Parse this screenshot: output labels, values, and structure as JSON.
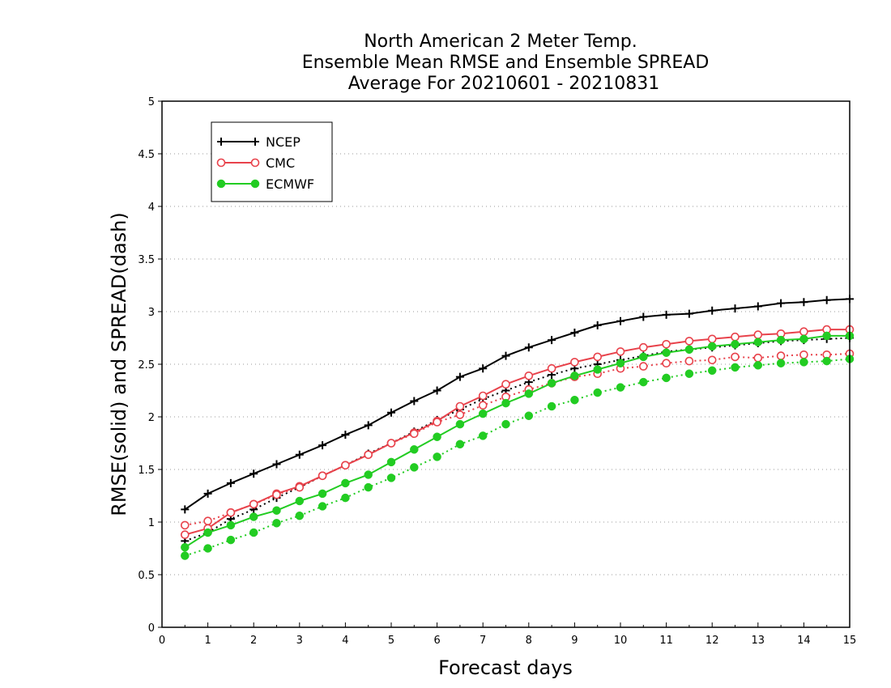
{
  "chart_data": {
    "type": "line",
    "title": [
      "North American 2 Meter Temp.",
      "Ensemble Mean RMSE and Ensemble SPREAD",
      "Average For 20210601 - 20210831"
    ],
    "xlabel": "Forecast days",
    "ylabel": "RMSE(solid) and SPREAD(dash)",
    "xlim": [
      0,
      15
    ],
    "ylim": [
      0,
      5
    ],
    "xticks": [
      "0",
      "1",
      "2",
      "3",
      "4",
      "5",
      "6",
      "7",
      "8",
      "9",
      "10",
      "11",
      "12",
      "13",
      "14",
      "15"
    ],
    "yticks": [
      "0",
      "0.5",
      "1",
      "1.5",
      "2",
      "2.5",
      "3",
      "3.5",
      "4",
      "4.5",
      "5"
    ],
    "grid": "horizontal dotted",
    "legend_placement": "top-left",
    "x": [
      0.5,
      1,
      1.5,
      2,
      2.5,
      3,
      3.5,
      4,
      4.5,
      5,
      5.5,
      6,
      6.5,
      7,
      7.5,
      8,
      8.5,
      9,
      9.5,
      10,
      10.5,
      11,
      11.5,
      12,
      12.5,
      13,
      13.5,
      14,
      14.5,
      15
    ],
    "series": [
      {
        "name": "NCEP",
        "color": "#000000",
        "marker": "plus",
        "rmse": [
          1.12,
          1.27,
          1.37,
          1.46,
          1.55,
          1.64,
          1.73,
          1.83,
          1.92,
          2.04,
          2.15,
          2.25,
          2.38,
          2.46,
          2.58,
          2.66,
          2.73,
          2.8,
          2.87,
          2.91,
          2.95,
          2.97,
          2.98,
          3.01,
          3.03,
          3.05,
          3.08,
          3.09,
          3.11,
          3.12
        ],
        "spread": [
          0.82,
          0.9,
          1.03,
          1.12,
          1.23,
          1.33,
          1.44,
          1.54,
          1.65,
          1.75,
          1.86,
          1.97,
          2.07,
          2.17,
          2.25,
          2.33,
          2.4,
          2.46,
          2.5,
          2.54,
          2.58,
          2.62,
          2.64,
          2.66,
          2.68,
          2.7,
          2.72,
          2.73,
          2.74,
          2.75
        ]
      },
      {
        "name": "CMC",
        "color": "#e8424b",
        "marker": "open-circle",
        "rmse": [
          0.88,
          0.94,
          1.09,
          1.17,
          1.27,
          1.34,
          1.44,
          1.54,
          1.64,
          1.75,
          1.85,
          1.96,
          2.1,
          2.2,
          2.31,
          2.39,
          2.46,
          2.52,
          2.57,
          2.62,
          2.66,
          2.69,
          2.72,
          2.74,
          2.76,
          2.78,
          2.79,
          2.81,
          2.83,
          2.83
        ],
        "spread": [
          0.97,
          1.01,
          1.09,
          1.17,
          1.26,
          1.33,
          1.44,
          1.54,
          1.64,
          1.75,
          1.84,
          1.95,
          2.02,
          2.11,
          2.19,
          2.26,
          2.32,
          2.38,
          2.41,
          2.46,
          2.48,
          2.51,
          2.53,
          2.54,
          2.57,
          2.56,
          2.58,
          2.59,
          2.59,
          2.6
        ]
      },
      {
        "name": "ECMWF",
        "color": "#22cc22",
        "marker": "filled-circle",
        "rmse": [
          0.76,
          0.9,
          0.97,
          1.05,
          1.11,
          1.2,
          1.27,
          1.37,
          1.45,
          1.57,
          1.69,
          1.81,
          1.93,
          2.03,
          2.13,
          2.22,
          2.32,
          2.39,
          2.45,
          2.51,
          2.57,
          2.61,
          2.64,
          2.67,
          2.69,
          2.71,
          2.73,
          2.74,
          2.77,
          2.77
        ],
        "spread": [
          0.68,
          0.75,
          0.83,
          0.9,
          0.99,
          1.06,
          1.15,
          1.23,
          1.33,
          1.42,
          1.52,
          1.62,
          1.74,
          1.82,
          1.93,
          2.01,
          2.1,
          2.16,
          2.23,
          2.28,
          2.33,
          2.37,
          2.41,
          2.44,
          2.47,
          2.49,
          2.51,
          2.52,
          2.53,
          2.55
        ]
      }
    ]
  }
}
